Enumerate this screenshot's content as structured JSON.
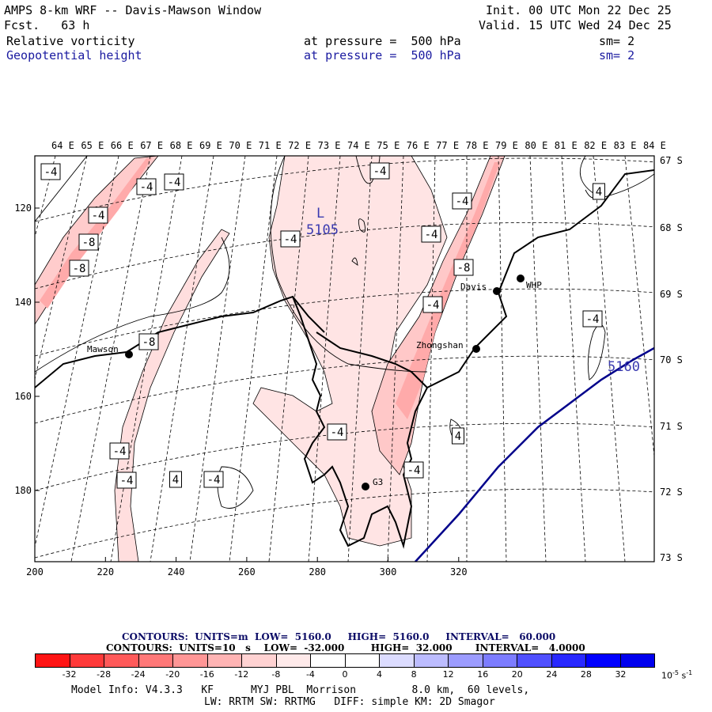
{
  "header": {
    "title": "AMPS 8-km WRF -- Davis-Mawson Window",
    "fcst": "Fcst.   63 h",
    "init": "Init. 00 UTC Mon 22 Dec 25",
    "valid": "Valid. 15 UTC Wed 24 Dec 25",
    "field1_name": "Relative vorticity",
    "field1_pressure": "at pressure =  500 hPa",
    "field1_sm": "sm= 2",
    "field2_name": "Geopotential height",
    "field2_pressure": "at pressure =  500 hPa",
    "field2_sm": "sm= 2"
  },
  "map": {
    "lon_labels": [
      "64 E",
      "65 E",
      "66 E",
      "67 E",
      "68 E",
      "69 E",
      "70 E",
      "71 E",
      "72 E",
      "73 E",
      "74 E",
      "75 E",
      "76 E",
      "77 E",
      "78 E",
      "79 E",
      "80 E",
      "81 E",
      "82 E",
      "83 E",
      "84 E"
    ],
    "lat_labels": [
      "67 S",
      "68 S",
      "69 S",
      "70 S",
      "71 S",
      "72 S",
      "73 S"
    ],
    "x_ticks": [
      "200",
      "220",
      "240",
      "260",
      "280",
      "300",
      "320"
    ],
    "y_ticks": [
      "120",
      "140",
      "160",
      "180"
    ],
    "low_label": "L",
    "low_value": "5105",
    "height_contour_label": "5160",
    "stations": [
      {
        "name": "Mawson"
      },
      {
        "name": "Davis"
      },
      {
        "name": "WHP"
      },
      {
        "name": "Zhongshan"
      },
      {
        "name": "G3"
      }
    ],
    "vort_labels": [
      "-4",
      "-4",
      "-4",
      "-4",
      "-8",
      "-8",
      "-4",
      "-4",
      "-4",
      "-4",
      "-8",
      "-4",
      "-8",
      "-4",
      "-4",
      "4",
      "-4",
      "4",
      "-4",
      "-4",
      "4",
      "4",
      "-4",
      "4"
    ]
  },
  "footer": {
    "contours1": "CONTOURS:  UNITS=m  LOW=  5160.0     HIGH=  5160.0     INTERVAL=   60.000",
    "contours2": "CONTOURS:  UNITS=10   s    LOW=  -32.000        HIGH=  32.000       INTERVAL=   4.0000",
    "colorbar_labels": [
      "-32",
      "-28",
      "-24",
      "-20",
      "-16",
      "-12",
      "-8",
      "-4",
      "0",
      "4",
      "8",
      "12",
      "16",
      "20",
      "24",
      "28",
      "32"
    ],
    "colorbar_unit": "10",
    "colorbar_colors": [
      "#ff1414",
      "#ff3a3a",
      "#ff5a5a",
      "#ff7878",
      "#ff9696",
      "#ffb4b4",
      "#ffd2d2",
      "#ffeaea",
      "#ffffff",
      "#ffffff",
      "#dcdcff",
      "#bcbcff",
      "#9c9cff",
      "#7c7cff",
      "#5050ff",
      "#2828ff",
      "#0000ff",
      "#0000ee"
    ],
    "model_info1": "Model Info: V4.3.3   KF      MYJ PBL  Morrison         8.0 km,  60 levels,",
    "model_info2": "LW: RRTM SW: RRTMG   DIFF: simple KM: 2D Smagor"
  }
}
